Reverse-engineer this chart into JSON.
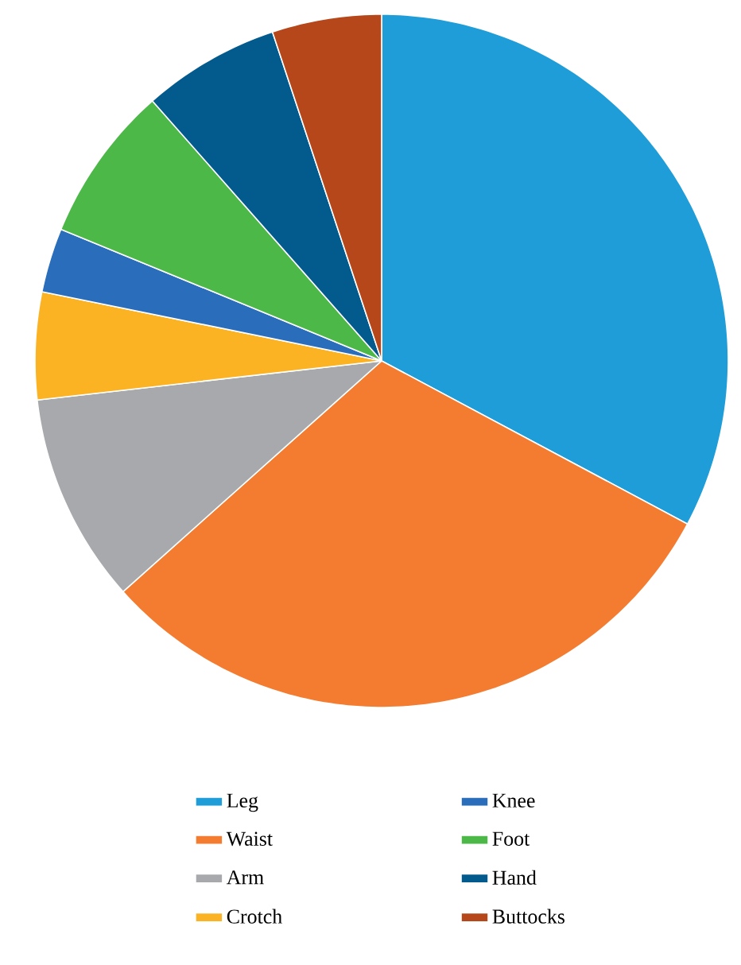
{
  "chart_data": {
    "type": "pie",
    "categories": [
      "Leg",
      "Waist",
      "Arm",
      "Crotch",
      "Knee",
      "Foot",
      "Hand",
      "Buttocks"
    ],
    "values": [
      32.8,
      30.6,
      9.8,
      5.0,
      3.0,
      7.3,
      6.4,
      5.1
    ],
    "colors": [
      "#1f9dd9",
      "#f47c30",
      "#a7a9ac",
      "#fbb323",
      "#2a6ebb",
      "#4cb848",
      "#035a8c",
      "#b5471b"
    ],
    "legend": "bottom"
  }
}
